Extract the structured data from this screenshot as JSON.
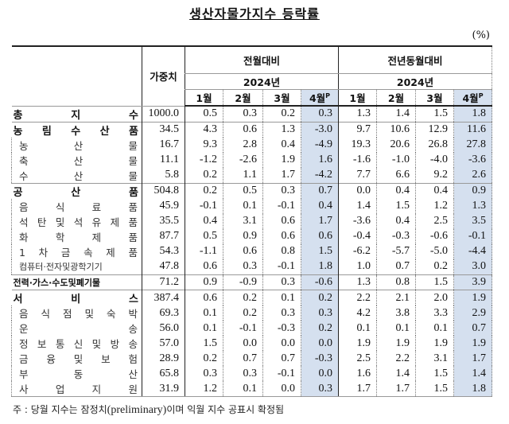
{
  "title": "생산자물가지수 등락률",
  "unit": "(%)",
  "header": {
    "weight": "가중치",
    "mom": "전월대비",
    "yoy": "전년동월대비",
    "year": "2024년",
    "months": [
      "1월",
      "2월",
      "3월",
      "4월"
    ],
    "prelim_mark": "P"
  },
  "highlight_color": "#d5e0ef",
  "rows": [
    {
      "label": "총 지 수",
      "type": "major",
      "weight": "1000.0",
      "mom": [
        "0.5",
        "0.3",
        "0.2",
        "0.3"
      ],
      "yoy": [
        "1.3",
        "1.4",
        "1.5",
        "1.8"
      ]
    },
    {
      "label": "농 림 수 산 품",
      "type": "major",
      "weight": "34.5",
      "mom": [
        "4.3",
        "0.6",
        "1.3",
        "-3.0"
      ],
      "yoy": [
        "9.7",
        "10.6",
        "12.9",
        "11.6"
      ]
    },
    {
      "label": "농 산 물",
      "type": "sub",
      "weight": "16.7",
      "mom": [
        "9.3",
        "2.8",
        "0.4",
        "-4.9"
      ],
      "yoy": [
        "19.3",
        "20.6",
        "26.8",
        "27.8"
      ]
    },
    {
      "label": "축 산 물",
      "type": "sub",
      "weight": "11.1",
      "mom": [
        "-1.2",
        "-2.6",
        "1.9",
        "1.6"
      ],
      "yoy": [
        "-1.6",
        "-1.0",
        "-4.0",
        "-3.6"
      ]
    },
    {
      "label": "수 산 물",
      "type": "sub",
      "weight": "5.8",
      "mom": [
        "0.2",
        "1.1",
        "1.7",
        "-4.2"
      ],
      "yoy": [
        "7.7",
        "6.6",
        "9.2",
        "2.6"
      ]
    },
    {
      "label": "공 산 품",
      "type": "major",
      "weight": "504.8",
      "mom": [
        "0.2",
        "0.5",
        "0.3",
        "0.7"
      ],
      "yoy": [
        "0.0",
        "0.4",
        "0.4",
        "0.9"
      ]
    },
    {
      "label": "음 식 료 품",
      "type": "sub",
      "weight": "45.9",
      "mom": [
        "-0.1",
        "0.1",
        "-0.1",
        "0.4"
      ],
      "yoy": [
        "1.4",
        "1.5",
        "1.2",
        "1.3"
      ]
    },
    {
      "label": "석 탄 및 석 유 제 품",
      "type": "sub",
      "weight": "35.5",
      "mom": [
        "0.4",
        "3.1",
        "0.6",
        "1.7"
      ],
      "yoy": [
        "-3.6",
        "0.4",
        "2.5",
        "3.5"
      ]
    },
    {
      "label": "화 학 제 품",
      "type": "sub",
      "weight": "87.7",
      "mom": [
        "0.5",
        "0.9",
        "0.6",
        "0.6"
      ],
      "yoy": [
        "-0.4",
        "-0.3",
        "-0.6",
        "-0.1"
      ]
    },
    {
      "label": "1 차 금 속 제 품",
      "type": "sub",
      "weight": "54.3",
      "mom": [
        "-1.1",
        "0.6",
        "0.8",
        "1.5"
      ],
      "yoy": [
        "-6.2",
        "-5.7",
        "-5.0",
        "-4.4"
      ]
    },
    {
      "label": "컴퓨터·전자및광학기기",
      "type": "sub small",
      "weight": "47.8",
      "mom": [
        "0.6",
        "0.3",
        "-0.1",
        "1.8"
      ],
      "yoy": [
        "1.0",
        "0.7",
        "0.2",
        "3.0"
      ]
    },
    {
      "label": "전력·가스·수도및폐기물",
      "type": "major small",
      "weight": "71.2",
      "mom": [
        "0.9",
        "-0.9",
        "0.3",
        "-0.6"
      ],
      "yoy": [
        "1.3",
        "0.8",
        "1.5",
        "3.9"
      ]
    },
    {
      "label": "서 비 스",
      "type": "major",
      "weight": "387.4",
      "mom": [
        "0.6",
        "0.2",
        "0.1",
        "0.2"
      ],
      "yoy": [
        "2.2",
        "2.1",
        "2.0",
        "1.9"
      ]
    },
    {
      "label": "음 식 점 및 숙 박",
      "type": "sub",
      "weight": "69.3",
      "mom": [
        "0.1",
        "0.2",
        "0.3",
        "0.3"
      ],
      "yoy": [
        "4.2",
        "3.8",
        "3.3",
        "2.9"
      ]
    },
    {
      "label": "운 송",
      "type": "sub",
      "weight": "56.0",
      "mom": [
        "0.1",
        "-0.1",
        "-0.3",
        "0.2"
      ],
      "yoy": [
        "0.1",
        "0.1",
        "0.1",
        "0.7"
      ]
    },
    {
      "label": "정 보 통 신 및 방 송",
      "type": "sub",
      "weight": "57.0",
      "mom": [
        "1.5",
        "0.0",
        "0.0",
        "0.0"
      ],
      "yoy": [
        "1.9",
        "1.9",
        "1.9",
        "1.9"
      ]
    },
    {
      "label": "금 융 및 보 험",
      "type": "sub",
      "weight": "28.9",
      "mom": [
        "0.2",
        "0.7",
        "0.7",
        "-0.3"
      ],
      "yoy": [
        "2.5",
        "2.2",
        "3.1",
        "1.7"
      ]
    },
    {
      "label": "부 동 산",
      "type": "sub",
      "weight": "65.8",
      "mom": [
        "0.3",
        "0.3",
        "-0.1",
        "0.0"
      ],
      "yoy": [
        "1.6",
        "1.4",
        "1.5",
        "1.4"
      ]
    },
    {
      "label": "사 업 지 원",
      "type": "sub",
      "weight": "31.9",
      "mom": [
        "1.2",
        "0.1",
        "0.0",
        "0.3"
      ],
      "yoy": [
        "1.7",
        "1.7",
        "1.5",
        "1.8"
      ]
    }
  ],
  "note": {
    "prefix": "주 : 당월 지수는 잠정치",
    "latin": "(preliminary)",
    "suffix": "이며 익월 지수 공표시 확정됨"
  }
}
